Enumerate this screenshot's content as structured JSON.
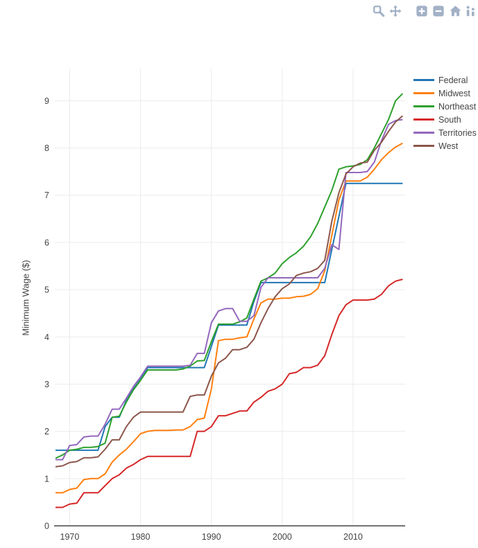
{
  "page": {
    "background": "#ffffff"
  },
  "modebar": {
    "icon_color": "#a2b1c6",
    "buttons": [
      {
        "name": "zoom"
      },
      {
        "name": "pan"
      },
      {
        "name": "zoom-in"
      },
      {
        "name": "zoom-out"
      },
      {
        "name": "reset-home"
      },
      {
        "name": "logo-partial"
      }
    ]
  },
  "chart_data": {
    "type": "line",
    "title": "",
    "xlabel": "",
    "ylabel": "Minimum Wage ($)",
    "grid": true,
    "grid_color": "#ebebeb",
    "zeroline_color": "#444444",
    "tick_color": "#444444",
    "line_width": 2,
    "legend_position": "top-right",
    "x_ticks": [
      1970,
      1980,
      1990,
      2000,
      2010
    ],
    "y_ticks": [
      0,
      1,
      2,
      3,
      4,
      5,
      6,
      7,
      8,
      9
    ],
    "xlim": [
      1967.9,
      2017.35
    ],
    "ylim": [
      0,
      9.68
    ],
    "x": [
      1968,
      1969,
      1970,
      1971,
      1972,
      1973,
      1974,
      1975,
      1976,
      1977,
      1978,
      1979,
      1980,
      1981,
      1982,
      1983,
      1984,
      1985,
      1986,
      1987,
      1988,
      1989,
      1990,
      1991,
      1992,
      1993,
      1994,
      1995,
      1996,
      1997,
      1998,
      1999,
      2000,
      2001,
      2002,
      2003,
      2004,
      2005,
      2006,
      2007,
      2008,
      2009,
      2010,
      2011,
      2012,
      2013,
      2014,
      2015,
      2016,
      2017
    ],
    "series": [
      {
        "name": "Federal",
        "color": "#1f77b4",
        "values": [
          1.6,
          1.6,
          1.6,
          1.6,
          1.6,
          1.6,
          1.6,
          2.1,
          2.3,
          2.3,
          2.65,
          2.9,
          3.1,
          3.35,
          3.35,
          3.35,
          3.35,
          3.35,
          3.35,
          3.35,
          3.35,
          3.35,
          3.8,
          4.25,
          4.25,
          4.25,
          4.25,
          4.25,
          4.75,
          5.15,
          5.15,
          5.15,
          5.15,
          5.15,
          5.15,
          5.15,
          5.15,
          5.15,
          5.15,
          5.85,
          6.55,
          7.25,
          7.25,
          7.25,
          7.25,
          7.25,
          7.25,
          7.25,
          7.25,
          7.25
        ]
      },
      {
        "name": "Midwest",
        "color": "#ff7f0e",
        "values": [
          0.7,
          0.7,
          0.77,
          0.8,
          0.98,
          1.0,
          1.0,
          1.1,
          1.35,
          1.5,
          1.62,
          1.78,
          1.95,
          2.0,
          2.02,
          2.02,
          2.02,
          2.03,
          2.03,
          2.1,
          2.25,
          2.28,
          2.9,
          3.92,
          3.95,
          3.95,
          3.98,
          4.0,
          4.38,
          4.72,
          4.8,
          4.8,
          4.82,
          4.82,
          4.85,
          4.86,
          4.9,
          5.02,
          5.4,
          6.15,
          6.9,
          7.3,
          7.3,
          7.3,
          7.38,
          7.55,
          7.75,
          7.9,
          8.02,
          8.1
        ]
      },
      {
        "name": "Northeast",
        "color": "#2ca02c",
        "values": [
          1.43,
          1.5,
          1.6,
          1.62,
          1.66,
          1.66,
          1.68,
          1.75,
          2.3,
          2.32,
          2.62,
          2.88,
          3.08,
          3.3,
          3.3,
          3.3,
          3.3,
          3.3,
          3.32,
          3.38,
          3.49,
          3.5,
          3.9,
          4.27,
          4.27,
          4.27,
          4.32,
          4.4,
          4.8,
          5.18,
          5.25,
          5.35,
          5.55,
          5.68,
          5.78,
          5.92,
          6.12,
          6.4,
          6.75,
          7.1,
          7.55,
          7.6,
          7.62,
          7.65,
          7.75,
          8.0,
          8.3,
          8.6,
          9.0,
          9.15
        ]
      },
      {
        "name": "South",
        "color": "#d62728",
        "values": [
          0.39,
          0.39,
          0.46,
          0.48,
          0.7,
          0.7,
          0.7,
          0.85,
          1.0,
          1.08,
          1.22,
          1.3,
          1.4,
          1.47,
          1.47,
          1.47,
          1.47,
          1.47,
          1.47,
          1.47,
          2.0,
          2.0,
          2.1,
          2.33,
          2.33,
          2.38,
          2.43,
          2.43,
          2.62,
          2.72,
          2.85,
          2.9,
          3.0,
          3.22,
          3.25,
          3.35,
          3.35,
          3.4,
          3.6,
          4.05,
          4.45,
          4.68,
          4.78,
          4.78,
          4.78,
          4.8,
          4.9,
          5.08,
          5.18,
          5.22
        ]
      },
      {
        "name": "Territories",
        "color": "#9467bd",
        "values": [
          1.4,
          1.4,
          1.7,
          1.72,
          1.88,
          1.9,
          1.9,
          2.15,
          2.47,
          2.47,
          2.7,
          2.95,
          3.15,
          3.38,
          3.38,
          3.38,
          3.38,
          3.38,
          3.38,
          3.4,
          3.65,
          3.65,
          4.3,
          4.55,
          4.6,
          4.6,
          4.33,
          4.33,
          4.45,
          5.05,
          5.25,
          5.25,
          5.25,
          5.25,
          5.25,
          5.25,
          5.25,
          5.25,
          5.45,
          5.95,
          5.85,
          7.48,
          7.48,
          7.48,
          7.5,
          7.7,
          8.15,
          8.5,
          8.58,
          8.6
        ]
      },
      {
        "name": "West",
        "color": "#8c564b",
        "values": [
          1.25,
          1.27,
          1.34,
          1.36,
          1.44,
          1.44,
          1.46,
          1.62,
          1.82,
          1.82,
          2.1,
          2.3,
          2.41,
          2.41,
          2.41,
          2.41,
          2.41,
          2.41,
          2.41,
          2.74,
          2.77,
          2.77,
          3.17,
          3.45,
          3.55,
          3.73,
          3.73,
          3.78,
          3.95,
          4.3,
          4.6,
          4.85,
          5.02,
          5.12,
          5.3,
          5.35,
          5.38,
          5.45,
          5.62,
          6.45,
          7.05,
          7.45,
          7.6,
          7.68,
          7.7,
          7.95,
          8.12,
          8.35,
          8.55,
          8.68
        ]
      }
    ]
  }
}
